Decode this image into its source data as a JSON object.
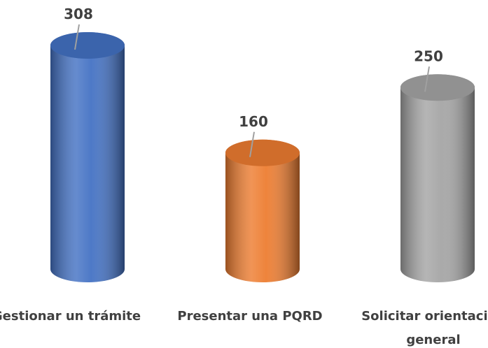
{
  "chart_data": {
    "type": "bar",
    "categories": [
      "Gestionar un trámite",
      "Presentar una PQRD",
      "Solicitar orientación general"
    ],
    "values": [
      308,
      160,
      250
    ],
    "colors": [
      "#4472c4",
      "#ed7d31",
      "#a5a5a5"
    ],
    "data_labels": true
  }
}
